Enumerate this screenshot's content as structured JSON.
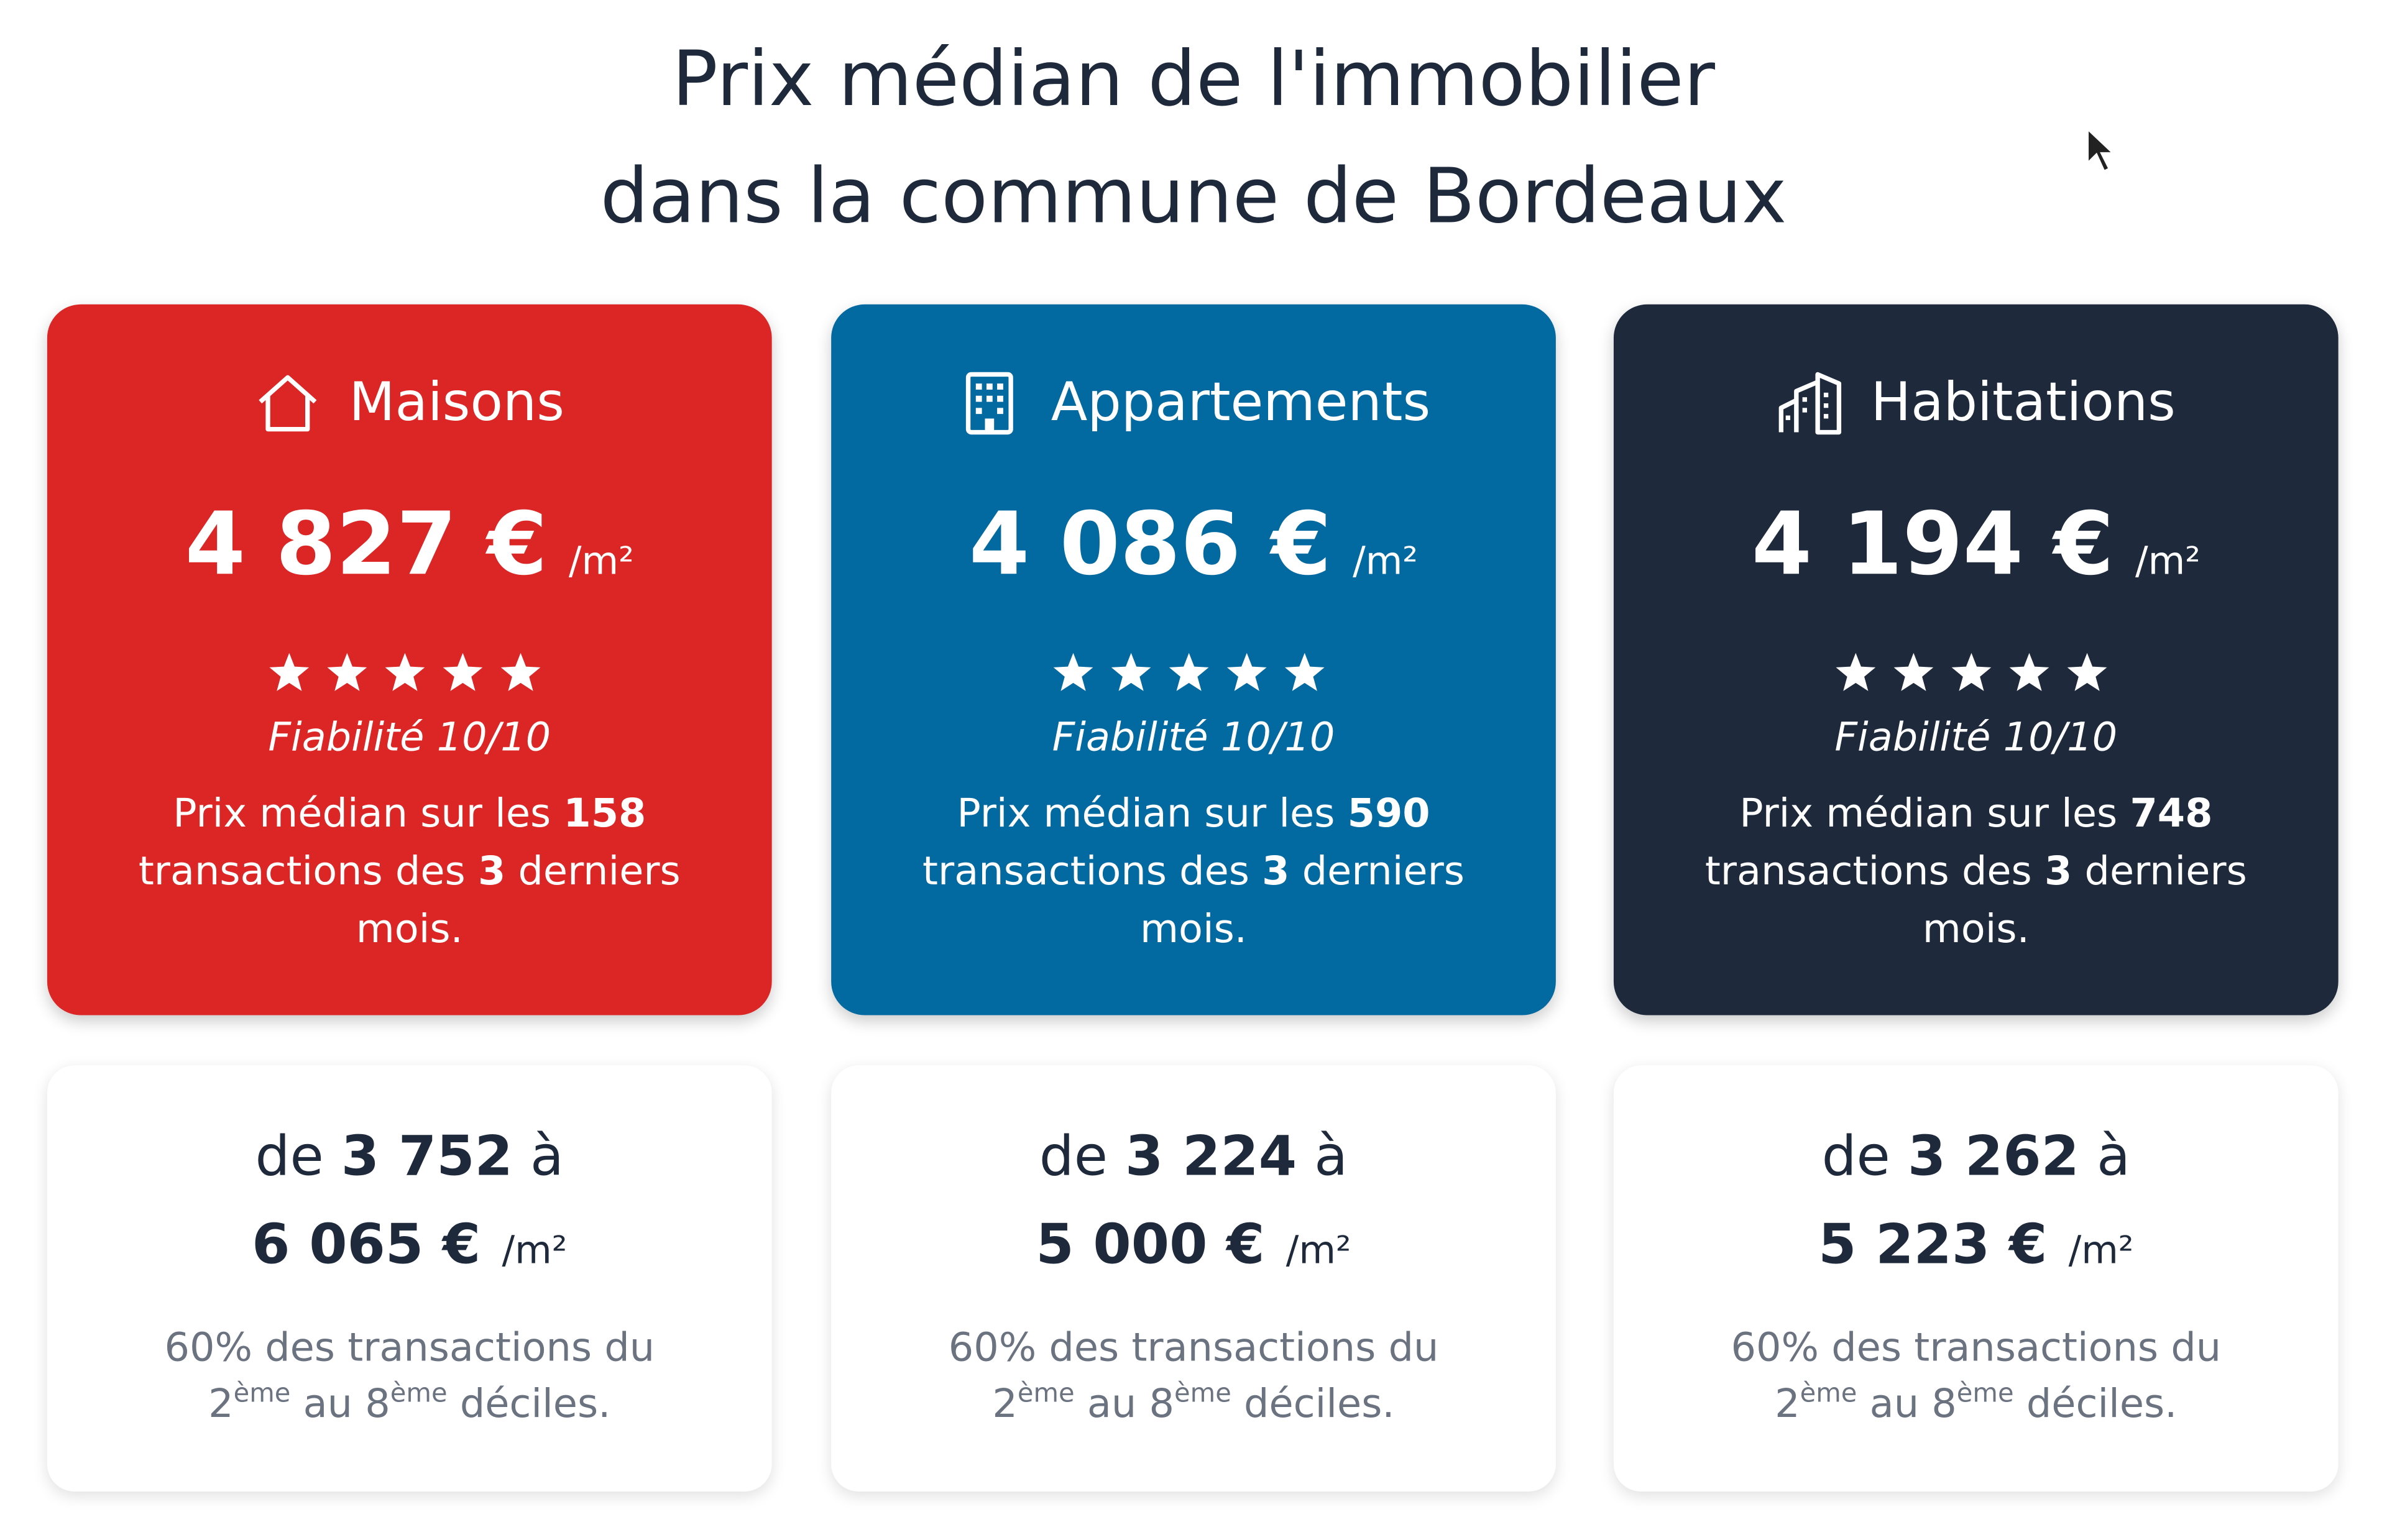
{
  "header": {
    "title_line1": "Prix médian de l'immobilier",
    "title_line2": "dans la commune de Bordeaux"
  },
  "cards": [
    {
      "label": "Maisons",
      "color": "#dc2626",
      "price": "4 827 €",
      "unit": "/m²",
      "reliability": "Fiabilité 10/10",
      "desc": [
        "Prix médian sur les ",
        "158",
        " transactions des ",
        "3",
        " derniers mois."
      ],
      "range": {
        "from": "de ",
        "low": "3 752",
        "to": " à",
        "high": "6 065 €",
        "unit": "/m²",
        "note": [
          "60% des transactions du ",
          "2",
          "ème",
          " au 8",
          "ème",
          " déciles."
        ]
      }
    },
    {
      "label": "Appartements",
      "color": "#0369a1",
      "price": "4 086 €",
      "unit": "/m²",
      "reliability": "Fiabilité 10/10",
      "desc": [
        "Prix médian sur les ",
        "590",
        " transactions des ",
        "3",
        " derniers mois."
      ],
      "range": {
        "from": "de ",
        "low": "3 224",
        "to": " à",
        "high": "5 000 €",
        "unit": "/m²",
        "note": [
          "60% des transactions du ",
          "2",
          "ème",
          " au 8",
          "ème",
          " déciles."
        ]
      }
    },
    {
      "label": "Habitations",
      "color": "#1e293b",
      "price": "4 194 €",
      "unit": "/m²",
      "reliability": "Fiabilité 10/10",
      "desc": [
        "Prix médian sur les ",
        "748",
        " transactions des ",
        "3",
        " derniers mois."
      ],
      "range": {
        "from": "de ",
        "low": "3 262",
        "to": " à",
        "high": "5 223 €",
        "unit": "/m²",
        "note": [
          "60% des transactions du ",
          "2",
          "ème",
          " au 8",
          "ème",
          " déciles."
        ]
      }
    }
  ]
}
